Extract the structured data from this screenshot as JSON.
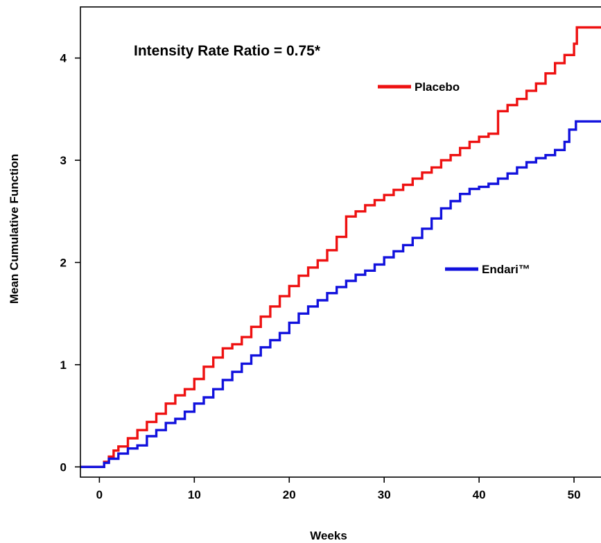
{
  "chart_data": {
    "type": "line",
    "title": "",
    "xlabel": "Weeks",
    "ylabel": "Mean Cumulative Function",
    "xlim": [
      -2,
      53.5
    ],
    "ylim": [
      -0.1,
      4.5
    ],
    "x_ticks": [
      0,
      10,
      20,
      30,
      40,
      50
    ],
    "y_ticks": [
      0,
      1,
      2,
      3,
      4
    ],
    "grid": false,
    "annotation": "Intensity Rate Ratio = 0.75*",
    "series": [
      {
        "name": "Placebo",
        "color": "#ee1111",
        "points": [
          [
            -2,
            0
          ],
          [
            0,
            0
          ],
          [
            0.5,
            0.05
          ],
          [
            1,
            0.1
          ],
          [
            1.5,
            0.16
          ],
          [
            2,
            0.2
          ],
          [
            3,
            0.28
          ],
          [
            4,
            0.36
          ],
          [
            5,
            0.44
          ],
          [
            6,
            0.52
          ],
          [
            7,
            0.62
          ],
          [
            8,
            0.7
          ],
          [
            9,
            0.76
          ],
          [
            10,
            0.86
          ],
          [
            11,
            0.98
          ],
          [
            12,
            1.07
          ],
          [
            13,
            1.16
          ],
          [
            14,
            1.2
          ],
          [
            15,
            1.27
          ],
          [
            16,
            1.37
          ],
          [
            17,
            1.47
          ],
          [
            18,
            1.57
          ],
          [
            19,
            1.67
          ],
          [
            20,
            1.77
          ],
          [
            21,
            1.87
          ],
          [
            22,
            1.95
          ],
          [
            23,
            2.02
          ],
          [
            24,
            2.12
          ],
          [
            25,
            2.25
          ],
          [
            26,
            2.45
          ],
          [
            27,
            2.5
          ],
          [
            28,
            2.56
          ],
          [
            29,
            2.61
          ],
          [
            30,
            2.66
          ],
          [
            31,
            2.71
          ],
          [
            32,
            2.76
          ],
          [
            33,
            2.82
          ],
          [
            34,
            2.88
          ],
          [
            35,
            2.93
          ],
          [
            36,
            3.0
          ],
          [
            37,
            3.05
          ],
          [
            38,
            3.12
          ],
          [
            39,
            3.18
          ],
          [
            40,
            3.23
          ],
          [
            41,
            3.26
          ],
          [
            42,
            3.48
          ],
          [
            43,
            3.54
          ],
          [
            44,
            3.6
          ],
          [
            45,
            3.68
          ],
          [
            46,
            3.75
          ],
          [
            47,
            3.85
          ],
          [
            48,
            3.95
          ],
          [
            49,
            4.03
          ],
          [
            50,
            4.14
          ],
          [
            50.3,
            4.3
          ],
          [
            53.5,
            4.3
          ]
        ]
      },
      {
        "name": "Endari™",
        "color": "#1111dd",
        "points": [
          [
            -2,
            0
          ],
          [
            0,
            0
          ],
          [
            0.5,
            0.04
          ],
          [
            1,
            0.08
          ],
          [
            2,
            0.13
          ],
          [
            3,
            0.18
          ],
          [
            4,
            0.21
          ],
          [
            5,
            0.3
          ],
          [
            6,
            0.36
          ],
          [
            7,
            0.43
          ],
          [
            8,
            0.47
          ],
          [
            9,
            0.54
          ],
          [
            10,
            0.62
          ],
          [
            11,
            0.68
          ],
          [
            12,
            0.76
          ],
          [
            13,
            0.85
          ],
          [
            14,
            0.93
          ],
          [
            15,
            1.01
          ],
          [
            16,
            1.09
          ],
          [
            17,
            1.17
          ],
          [
            18,
            1.24
          ],
          [
            19,
            1.31
          ],
          [
            20,
            1.41
          ],
          [
            21,
            1.5
          ],
          [
            22,
            1.57
          ],
          [
            23,
            1.63
          ],
          [
            24,
            1.7
          ],
          [
            25,
            1.76
          ],
          [
            26,
            1.82
          ],
          [
            27,
            1.88
          ],
          [
            28,
            1.92
          ],
          [
            29,
            1.98
          ],
          [
            30,
            2.05
          ],
          [
            31,
            2.11
          ],
          [
            32,
            2.17
          ],
          [
            33,
            2.24
          ],
          [
            34,
            2.33
          ],
          [
            35,
            2.43
          ],
          [
            36,
            2.53
          ],
          [
            37,
            2.6
          ],
          [
            38,
            2.67
          ],
          [
            39,
            2.72
          ],
          [
            40,
            2.74
          ],
          [
            41,
            2.77
          ],
          [
            42,
            2.82
          ],
          [
            43,
            2.87
          ],
          [
            44,
            2.93
          ],
          [
            45,
            2.98
          ],
          [
            46,
            3.02
          ],
          [
            47,
            3.05
          ],
          [
            48,
            3.1
          ],
          [
            49,
            3.18
          ],
          [
            49.5,
            3.3
          ],
          [
            50,
            3.3
          ],
          [
            50.2,
            3.38
          ],
          [
            53.5,
            3.38
          ]
        ]
      }
    ]
  }
}
